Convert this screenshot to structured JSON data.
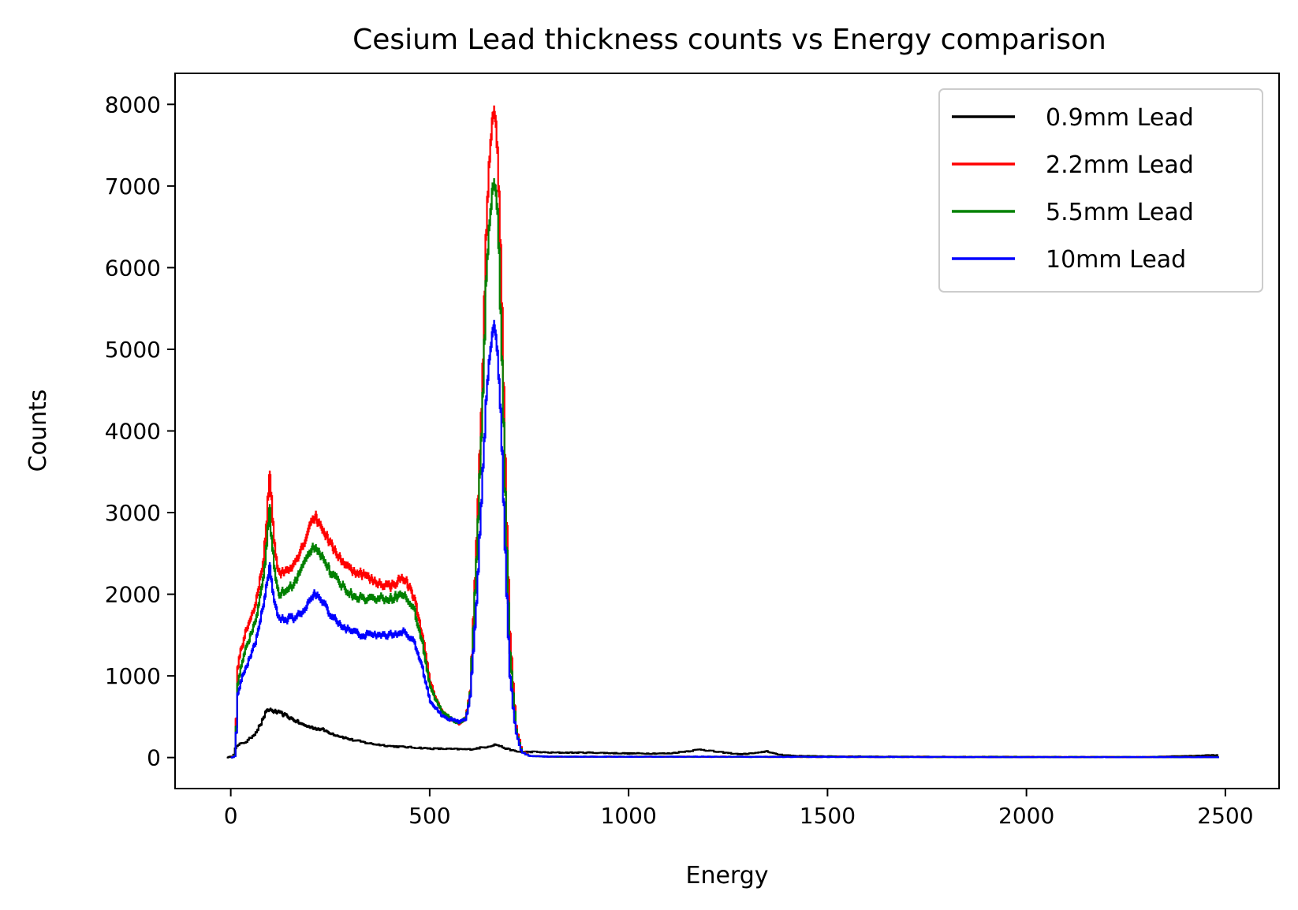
{
  "chart_data": {
    "type": "line",
    "title": "Cesium Lead thickness counts vs Energy comparison",
    "xlabel": "Energy",
    "ylabel": "Counts",
    "xlim": [
      -140,
      2635
    ],
    "ylim": [
      -380,
      8380
    ],
    "xticks": [
      0,
      500,
      1000,
      1500,
      2000,
      2500
    ],
    "yticks": [
      0,
      1000,
      2000,
      3000,
      4000,
      5000,
      6000,
      7000,
      8000
    ],
    "grid": false,
    "legend_position": "top-right",
    "series": [
      {
        "name": "0.9mm Lead",
        "color": "#000000",
        "x": [
          -10,
          5,
          10,
          20,
          40,
          60,
          75,
          85,
          95,
          110,
          130,
          150,
          180,
          200,
          230,
          260,
          300,
          350,
          400,
          450,
          500,
          550,
          600,
          640,
          665,
          690,
          720,
          760,
          800,
          900,
          1000,
          1100,
          1150,
          1180,
          1220,
          1280,
          1330,
          1345,
          1370,
          1420,
          1500,
          1700,
          2000,
          2300,
          2480
        ],
        "y": [
          0,
          20,
          120,
          160,
          200,
          300,
          420,
          540,
          590,
          560,
          530,
          480,
          400,
          370,
          340,
          280,
          220,
          170,
          140,
          125,
          110,
          105,
          100,
          130,
          160,
          110,
          70,
          70,
          60,
          60,
          50,
          50,
          80,
          100,
          70,
          40,
          60,
          80,
          40,
          20,
          15,
          10,
          8,
          5,
          30
        ]
      },
      {
        "name": "2.2mm Lead",
        "color": "#ff0000",
        "x": [
          0,
          10,
          15,
          25,
          40,
          60,
          80,
          90,
          95,
          100,
          110,
          120,
          140,
          160,
          180,
          200,
          210,
          230,
          250,
          280,
          300,
          330,
          360,
          400,
          430,
          440,
          460,
          480,
          500,
          530,
          560,
          575,
          590,
          600,
          615,
          630,
          640,
          650,
          660,
          665,
          670,
          680,
          690,
          700,
          715,
          730,
          750,
          800,
          1000,
          1500,
          2000,
          2480
        ],
        "y": [
          0,
          30,
          1100,
          1350,
          1600,
          1850,
          2400,
          3000,
          3550,
          3200,
          2500,
          2250,
          2300,
          2400,
          2600,
          2900,
          2950,
          2800,
          2600,
          2400,
          2300,
          2250,
          2150,
          2100,
          2200,
          2150,
          1950,
          1500,
          900,
          550,
          450,
          410,
          500,
          800,
          2500,
          4500,
          6400,
          7500,
          7950,
          7800,
          7300,
          5500,
          3200,
          1500,
          400,
          80,
          20,
          10,
          10,
          8,
          5,
          5
        ]
      },
      {
        "name": "5.5mm Lead",
        "color": "#008000",
        "x": [
          0,
          10,
          15,
          25,
          40,
          60,
          80,
          90,
          95,
          100,
          110,
          120,
          140,
          160,
          180,
          200,
          210,
          230,
          250,
          280,
          300,
          330,
          360,
          400,
          430,
          440,
          460,
          480,
          500,
          530,
          560,
          575,
          590,
          600,
          615,
          630,
          640,
          650,
          660,
          665,
          670,
          680,
          690,
          700,
          715,
          730,
          750,
          800,
          1000,
          1500,
          2000,
          2480
        ],
        "y": [
          0,
          30,
          900,
          1150,
          1400,
          1650,
          2200,
          2700,
          3100,
          2700,
          2200,
          2000,
          2050,
          2150,
          2350,
          2550,
          2600,
          2450,
          2250,
          2100,
          2000,
          1950,
          1950,
          1950,
          2000,
          1950,
          1800,
          1400,
          850,
          550,
          450,
          420,
          500,
          800,
          2300,
          4200,
          5800,
          6700,
          7050,
          6900,
          6500,
          4900,
          2800,
          1300,
          350,
          70,
          20,
          10,
          10,
          8,
          5,
          5
        ]
      },
      {
        "name": "10mm Lead",
        "color": "#0000ff",
        "x": [
          0,
          10,
          15,
          25,
          40,
          60,
          80,
          90,
          95,
          100,
          110,
          120,
          140,
          160,
          180,
          200,
          210,
          230,
          250,
          280,
          300,
          330,
          360,
          400,
          430,
          440,
          460,
          480,
          500,
          530,
          560,
          575,
          590,
          600,
          615,
          630,
          640,
          650,
          660,
          665,
          670,
          680,
          690,
          700,
          715,
          730,
          750,
          800,
          1000,
          1500,
          2000,
          2480
        ],
        "y": [
          0,
          20,
          750,
          950,
          1150,
          1400,
          1850,
          2150,
          2350,
          2200,
          1850,
          1700,
          1700,
          1700,
          1800,
          1950,
          2000,
          1900,
          1750,
          1600,
          1550,
          1500,
          1500,
          1500,
          1550,
          1500,
          1400,
          1100,
          700,
          500,
          450,
          440,
          480,
          750,
          1800,
          3300,
          4400,
          5000,
          5300,
          5200,
          4900,
          3800,
          2200,
          1000,
          300,
          60,
          20,
          10,
          10,
          8,
          5,
          5
        ]
      }
    ]
  }
}
